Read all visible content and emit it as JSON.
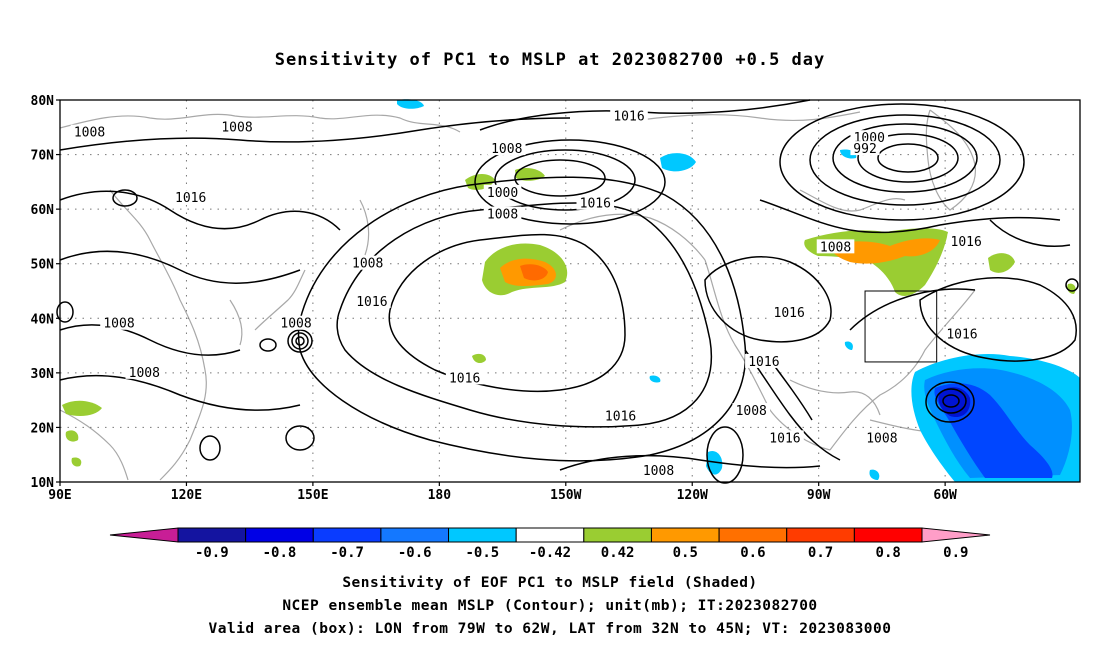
{
  "title": "Sensitivity of PC1 to MSLP at 2023082700 +0.5 day",
  "map": {
    "lat_ticks": [
      {
        "value": 80,
        "label": "80N"
      },
      {
        "value": 70,
        "label": "70N"
      },
      {
        "value": 60,
        "label": "60N"
      },
      {
        "value": 50,
        "label": "50N"
      },
      {
        "value": 40,
        "label": "40N"
      },
      {
        "value": 30,
        "label": "30N"
      },
      {
        "value": 20,
        "label": "20N"
      },
      {
        "value": 10,
        "label": "10N"
      }
    ],
    "lon_ticks": [
      {
        "value": 90,
        "label": "90E"
      },
      {
        "value": 120,
        "label": "120E"
      },
      {
        "value": 150,
        "label": "150E"
      },
      {
        "value": 180,
        "label": "180"
      },
      {
        "value": 210,
        "label": "150W"
      },
      {
        "value": 240,
        "label": "120W"
      },
      {
        "value": 270,
        "label": "90W"
      },
      {
        "value": 300,
        "label": "60W"
      }
    ],
    "lon_range": [
      90,
      332
    ],
    "lat_range": [
      10,
      80
    ],
    "gridlines": "dotted",
    "contour_labels": [
      {
        "text": "1008",
        "lon": 97,
        "lat": 74
      },
      {
        "text": "1008",
        "lon": 132,
        "lat": 75
      },
      {
        "text": "1016",
        "lon": 121,
        "lat": 62
      },
      {
        "text": "1008",
        "lon": 104,
        "lat": 39
      },
      {
        "text": "1008",
        "lon": 110,
        "lat": 30
      },
      {
        "text": "1008",
        "lon": 146,
        "lat": 39
      },
      {
        "text": "1008",
        "lon": 163,
        "lat": 50
      },
      {
        "text": "1016",
        "lon": 164,
        "lat": 43
      },
      {
        "text": "1008",
        "lon": 196,
        "lat": 71
      },
      {
        "text": "1000",
        "lon": 195,
        "lat": 63
      },
      {
        "text": "1008",
        "lon": 195,
        "lat": 59
      },
      {
        "text": "1016",
        "lon": 217,
        "lat": 61
      },
      {
        "text": "1016",
        "lon": 225,
        "lat": 77
      },
      {
        "text": "1016",
        "lon": 186,
        "lat": 29
      },
      {
        "text": "1016",
        "lon": 223,
        "lat": 22
      },
      {
        "text": "1008",
        "lon": 232,
        "lat": 12
      },
      {
        "text": "1000",
        "lon": 282,
        "lat": 73
      },
      {
        "text": "992",
        "lon": 281,
        "lat": 71
      },
      {
        "text": "1008",
        "lon": 274,
        "lat": 53
      },
      {
        "text": "1016",
        "lon": 305,
        "lat": 54
      },
      {
        "text": "1016",
        "lon": 263,
        "lat": 41
      },
      {
        "text": "1016",
        "lon": 257,
        "lat": 32
      },
      {
        "text": "1008",
        "lon": 254,
        "lat": 23
      },
      {
        "text": "1016",
        "lon": 262,
        "lat": 18
      },
      {
        "text": "1008",
        "lon": 285,
        "lat": 18
      },
      {
        "text": "1016",
        "lon": 304,
        "lat": 37
      }
    ],
    "valid_box": {
      "lon_min": 281,
      "lon_max": 298,
      "lat_min": 32,
      "lat_max": 45
    },
    "colors": {
      "coast": "#a8a8a8",
      "contour": "#000000",
      "green": "#9acd32",
      "orange": "#ff9900",
      "darkorange": "#ff6a00",
      "cyan": "#00c8ff",
      "lightblue": "#0090ff",
      "blue": "#0046ff",
      "deepblue": "#0014d2"
    }
  },
  "colorbar": {
    "labels": [
      "-0.9",
      "-0.8",
      "-0.7",
      "-0.6",
      "-0.5",
      "-0.42",
      "0.42",
      "0.5",
      "0.6",
      "0.7",
      "0.8",
      "0.9"
    ],
    "colors": [
      "#1414a0",
      "#0000e6",
      "#0a3cff",
      "#1478ff",
      "#00c8ff",
      "#ffffff",
      "#9acd32",
      "#ff9900",
      "#ff7000",
      "#ff3c00",
      "#ff0000"
    ],
    "low_end_color": "#c81e96",
    "high_end_color": "#ff9ec8"
  },
  "captions": [
    "Sensitivity of EOF PC1 to MSLP field (Shaded)",
    "NCEP ensemble mean MSLP (Contour); unit(mb); IT:2023082700",
    "Valid area (box): LON from 79W to 62W, LAT from 32N to 45N; VT: 2023083000"
  ]
}
